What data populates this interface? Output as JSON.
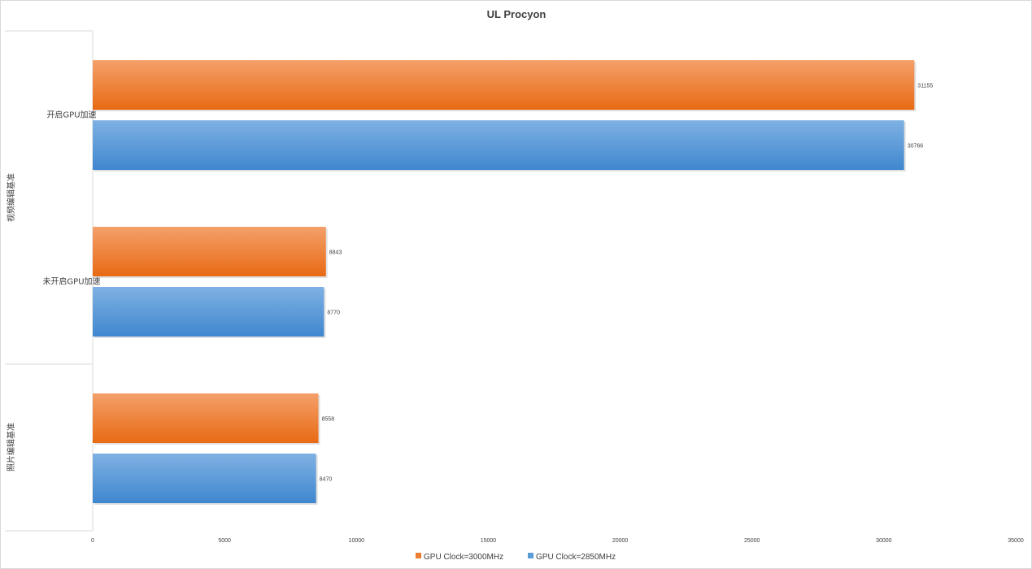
{
  "chart_data": {
    "type": "bar",
    "orientation": "horizontal",
    "title": "UL Procyon",
    "xlabel": "",
    "ylabel": "",
    "xlim": [
      0,
      35000
    ],
    "x_ticks": [
      0,
      5000,
      10000,
      15000,
      20000,
      25000,
      30000,
      35000
    ],
    "grid": false,
    "legend_position": "bottom",
    "groups": [
      {
        "label": "视频编辑基准",
        "categories": [
          "开启GPU加速",
          "未开启GPU加速"
        ]
      },
      {
        "label": "照片编辑基准",
        "categories": [
          ""
        ]
      }
    ],
    "categories": [
      "开启GPU加速",
      "未开启GPU加速",
      ""
    ],
    "series": [
      {
        "name": "GPU Clock=3000MHz",
        "color": "#ed7d31",
        "values": [
          31155,
          8843,
          8558
        ]
      },
      {
        "name": "GPU Clock=2850MHz",
        "color": "#5b9bd5",
        "values": [
          30766,
          8770,
          8470
        ]
      }
    ]
  }
}
